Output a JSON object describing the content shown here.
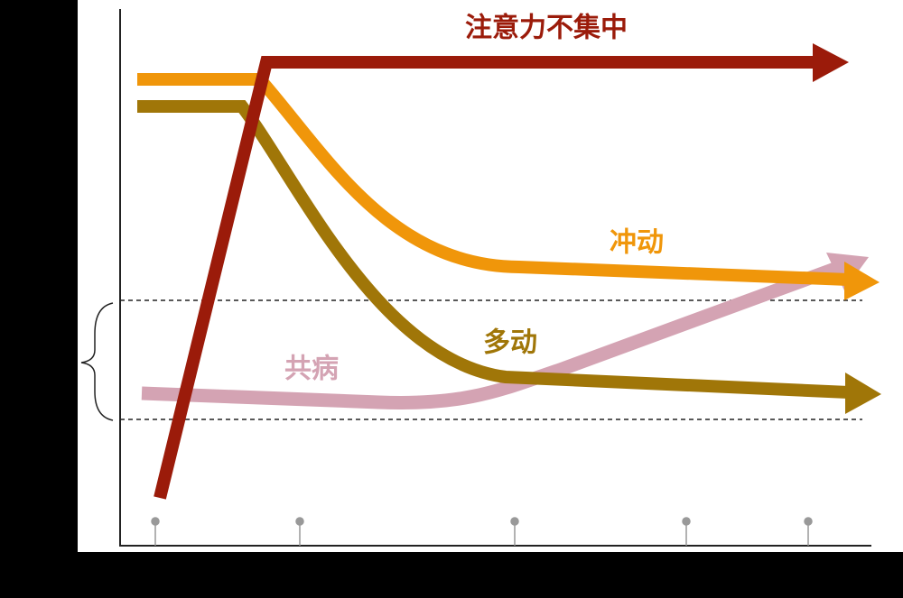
{
  "labels": {
    "inattention": "注意力不集中",
    "impulsivity": "冲动",
    "hyperactivity": "多动",
    "comorbidity": "共病"
  }
}
